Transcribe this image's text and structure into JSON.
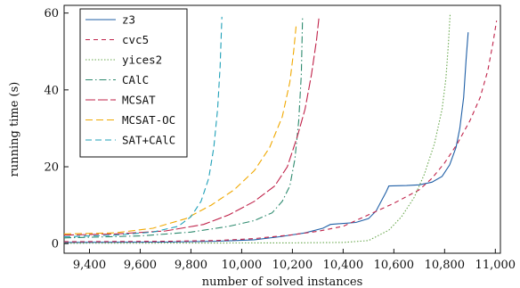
{
  "chart_data": {
    "type": "line",
    "title": "",
    "xlabel": "number of solved instances",
    "ylabel": "running time (s)",
    "xlim": [
      9300,
      11020
    ],
    "ylim": [
      -2.5,
      62
    ],
    "xticks": [
      9400,
      9600,
      9800,
      10000,
      10200,
      10400,
      10600,
      10800,
      11000
    ],
    "xtick_labels": [
      "9,400",
      "9,600",
      "9,800",
      "10,000",
      "10,200",
      "10,400",
      "10,600",
      "10,800",
      "11,000"
    ],
    "yticks": [
      0,
      20,
      40,
      60
    ],
    "ytick_labels": [
      "0",
      "20",
      "40",
      "60"
    ],
    "grid": false,
    "legend_position": "top-left",
    "series": [
      {
        "name": "z3",
        "color": "#1f5fa6",
        "dash": "solid",
        "points": [
          [
            9300,
            0.3
          ],
          [
            9700,
            0.4
          ],
          [
            9900,
            0.6
          ],
          [
            10050,
            1.0
          ],
          [
            10150,
            1.8
          ],
          [
            10250,
            2.8
          ],
          [
            10320,
            4.0
          ],
          [
            10350,
            5.0
          ],
          [
            10450,
            5.5
          ],
          [
            10500,
            6.5
          ],
          [
            10530,
            8.5
          ],
          [
            10550,
            11
          ],
          [
            10570,
            13.5
          ],
          [
            10580,
            15
          ],
          [
            10650,
            15.1
          ],
          [
            10700,
            15.3
          ],
          [
            10750,
            16
          ],
          [
            10790,
            17.5
          ],
          [
            10820,
            20.5
          ],
          [
            10845,
            25
          ],
          [
            10860,
            30
          ],
          [
            10875,
            38
          ],
          [
            10885,
            48
          ],
          [
            10893,
            55
          ]
        ]
      },
      {
        "name": "cvc5",
        "color": "#c0234a",
        "dash": "5,4",
        "points": [
          [
            9300,
            0.5
          ],
          [
            9700,
            0.6
          ],
          [
            9900,
            0.8
          ],
          [
            10050,
            1.3
          ],
          [
            10200,
            2.3
          ],
          [
            10300,
            3.2
          ],
          [
            10400,
            4.5
          ],
          [
            10500,
            7.5
          ],
          [
            10600,
            10.5
          ],
          [
            10700,
            14
          ],
          [
            10750,
            17
          ],
          [
            10800,
            21
          ],
          [
            10850,
            26
          ],
          [
            10900,
            32
          ],
          [
            10940,
            38
          ],
          [
            10970,
            45
          ],
          [
            10990,
            52
          ],
          [
            11005,
            58
          ]
        ]
      },
      {
        "name": "yices2",
        "color": "#6aa84f",
        "dash": "1.5,2",
        "points": [
          [
            9300,
            0.1
          ],
          [
            10200,
            0.2
          ],
          [
            10400,
            0.3
          ],
          [
            10500,
            0.8
          ],
          [
            10580,
            3.5
          ],
          [
            10630,
            7
          ],
          [
            10680,
            12
          ],
          [
            10720,
            18
          ],
          [
            10760,
            26
          ],
          [
            10790,
            35
          ],
          [
            10805,
            43
          ],
          [
            10815,
            52
          ],
          [
            10822,
            60
          ]
        ]
      },
      {
        "name": "CAlC",
        "color": "#2d8a6e",
        "dash": "8,3,1.5,3",
        "points": [
          [
            9300,
            1.5
          ],
          [
            9600,
            2
          ],
          [
            9800,
            3
          ],
          [
            9950,
            4.5
          ],
          [
            10050,
            6
          ],
          [
            10120,
            8
          ],
          [
            10160,
            11
          ],
          [
            10190,
            15
          ],
          [
            10210,
            22
          ],
          [
            10225,
            32
          ],
          [
            10235,
            44
          ],
          [
            10240,
            59
          ]
        ]
      },
      {
        "name": "MCSAT",
        "color": "#c0234a",
        "dash": "11,3",
        "points": [
          [
            9300,
            2.2
          ],
          [
            9500,
            2.5
          ],
          [
            9700,
            3.3
          ],
          [
            9850,
            5
          ],
          [
            9950,
            7.5
          ],
          [
            10050,
            11
          ],
          [
            10130,
            15
          ],
          [
            10180,
            20
          ],
          [
            10220,
            28
          ],
          [
            10250,
            35
          ],
          [
            10275,
            44
          ],
          [
            10295,
            53
          ],
          [
            10305,
            59
          ]
        ]
      },
      {
        "name": "MCSAT-OC",
        "color": "#f0a800",
        "dash": "8,4",
        "points": [
          [
            9300,
            2.5
          ],
          [
            9500,
            2.8
          ],
          [
            9650,
            4
          ],
          [
            9780,
            6.5
          ],
          [
            9880,
            10
          ],
          [
            9970,
            14
          ],
          [
            10050,
            19
          ],
          [
            10110,
            25
          ],
          [
            10160,
            33
          ],
          [
            10190,
            42
          ],
          [
            10205,
            50
          ],
          [
            10215,
            57
          ]
        ]
      },
      {
        "name": "SAT+CAlC",
        "color": "#1fa0b8",
        "dash": "7,4",
        "points": [
          [
            9300,
            1.8
          ],
          [
            9500,
            2.2
          ],
          [
            9650,
            3
          ],
          [
            9750,
            4.5
          ],
          [
            9800,
            7
          ],
          [
            9840,
            11
          ],
          [
            9870,
            17
          ],
          [
            9890,
            25
          ],
          [
            9905,
            35
          ],
          [
            9915,
            46
          ],
          [
            9922,
            59
          ]
        ]
      }
    ]
  }
}
